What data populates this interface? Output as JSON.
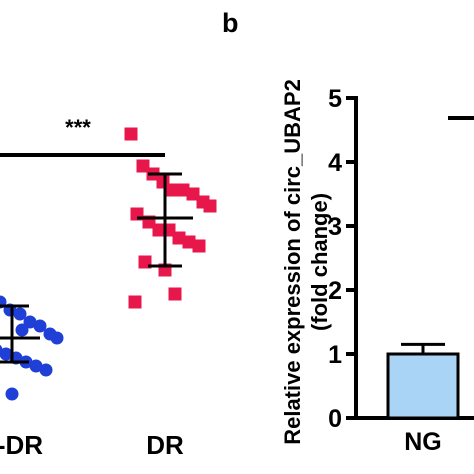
{
  "panel_b_label": "b",
  "chart_data": [
    {
      "type": "scatter",
      "panel": "a",
      "categories": [
        "Non-DR",
        "DR"
      ],
      "visible_category_labels": [
        "n-DR",
        "DR"
      ],
      "series": [
        {
          "category": "Non-DR",
          "color": "#1f3fd6",
          "marker": "circle",
          "values": [
            1.9,
            1.7,
            1.6,
            1.5,
            1.45,
            1.35,
            1.3,
            1.2,
            1.15,
            1.1,
            1.0,
            0.95,
            0.9,
            0.85,
            0.8,
            0.75,
            0.6,
            0.45,
            1.25
          ],
          "mean": 1.15,
          "sd_low": 0.85,
          "sd_high": 1.55
        },
        {
          "category": "DR",
          "color": "#e8174b",
          "marker": "square",
          "values": [
            3.7,
            3.3,
            3.2,
            3.1,
            3.0,
            3.0,
            2.95,
            2.85,
            2.8,
            2.7,
            2.6,
            2.5,
            2.5,
            2.4,
            2.35,
            2.3,
            2.1,
            2.0,
            1.7,
            1.6
          ],
          "mean": 2.65,
          "sd_low": 2.05,
          "sd_high": 3.2
        }
      ],
      "significance": "***"
    },
    {
      "type": "bar",
      "panel": "b",
      "categories": [
        "NG"
      ],
      "values": [
        1.0
      ],
      "error": [
        0.15
      ],
      "bar_color": "#aad4f5",
      "ylabel_line1": "Relative expression of circ_UBAP2",
      "ylabel_line2": "(fold change)",
      "ylim": [
        0,
        5
      ],
      "yticks": [
        "0",
        "1",
        "2",
        "3",
        "4",
        "5"
      ]
    }
  ]
}
